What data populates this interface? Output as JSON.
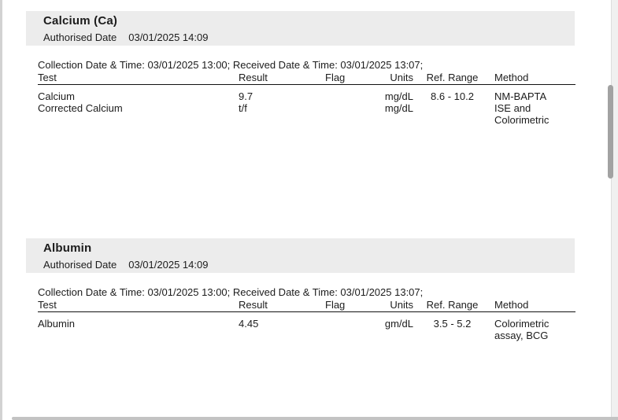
{
  "report": {
    "sections": [
      {
        "title": "Calcium (Ca)",
        "authorised": {
          "label": "Authorised Date",
          "value": "03/01/2025 14:09"
        },
        "collection_line": "Collection Date & Time: 03/01/2025 13:00; Received Date & Time: 03/01/2025 13:07;",
        "columns": {
          "test": "Test",
          "result": "Result",
          "flag": "Flag",
          "units": "Units",
          "ref_range": "Ref. Range",
          "method": "Method"
        },
        "rows": [
          {
            "test": "Calcium",
            "result": "9.7",
            "flag": "",
            "units": "mg/dL",
            "ref_range": "8.6 - 10.2",
            "method": "NM-BAPTA"
          },
          {
            "test": "Corrected Calcium",
            "result": "t/f",
            "flag": "",
            "units": "mg/dL",
            "ref_range": "",
            "method": "ISE and Colorimetric"
          }
        ]
      },
      {
        "title": "Albumin",
        "authorised": {
          "label": "Authorised Date",
          "value": "03/01/2025 14:09"
        },
        "collection_line": "Collection Date & Time: 03/01/2025 13:00; Received Date & Time: 03/01/2025 13:07;",
        "columns": {
          "test": "Test",
          "result": "Result",
          "flag": "Flag",
          "units": "Units",
          "ref_range": "Ref. Range",
          "method": "Method"
        },
        "rows": [
          {
            "test": "Albumin",
            "result": "4.45",
            "flag": "",
            "units": "gm/dL",
            "ref_range": "3.5 - 5.2",
            "method": "Colorimetric assay, BCG"
          }
        ]
      }
    ],
    "colors": {
      "section_header_bg": "#ececec",
      "text": "#1c1c1c",
      "table_rule": "#111111",
      "scroll_thumb": "#a2a2a2",
      "scroll_track": "#f0f0f0",
      "bottom_divider": "#c3c3c3"
    }
  }
}
